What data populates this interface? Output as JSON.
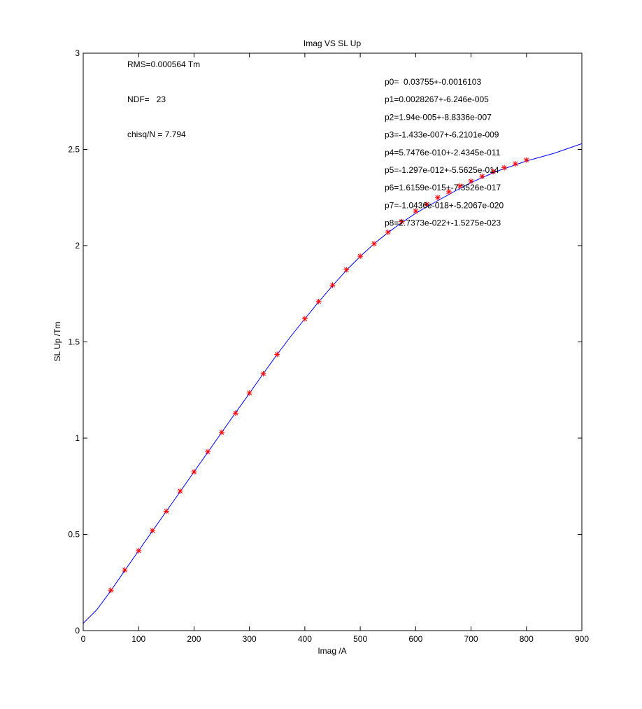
{
  "chart_data": {
    "type": "scatter",
    "title": "Imag VS SL Up",
    "xlabel": "Imag /A",
    "ylabel": "SL Up /Tm",
    "xlim": [
      0,
      900
    ],
    "ylim": [
      0,
      3
    ],
    "xticks": [
      0,
      100,
      200,
      300,
      400,
      500,
      600,
      700,
      800,
      900
    ],
    "yticks": [
      0,
      0.5,
      1,
      1.5,
      2,
      2.5,
      3
    ],
    "xtick_labels": [
      "0",
      "100",
      "200",
      "300",
      "400",
      "500",
      "600",
      "700",
      "800",
      "900"
    ],
    "ytick_labels": [
      "0",
      "0.5",
      "1",
      "1.5",
      "2",
      "2.5",
      "3"
    ],
    "grid": false,
    "series": [
      {
        "type": "scatter",
        "marker": "asterisk",
        "color": "#ff0000",
        "x": [
          50,
          75,
          100,
          125,
          150,
          175,
          200,
          225,
          250,
          275,
          300,
          325,
          350,
          400,
          425,
          450,
          475,
          500,
          525,
          550,
          575,
          600,
          620,
          640,
          660,
          680,
          700,
          720,
          740,
          760,
          780,
          800
        ],
        "y": [
          0.21,
          0.315,
          0.415,
          0.52,
          0.62,
          0.725,
          0.825,
          0.93,
          1.03,
          1.13,
          1.235,
          1.335,
          1.435,
          1.62,
          1.71,
          1.795,
          1.875,
          1.945,
          2.01,
          2.07,
          2.125,
          2.18,
          2.215,
          2.25,
          2.28,
          2.31,
          2.335,
          2.36,
          2.385,
          2.405,
          2.425,
          2.445
        ]
      },
      {
        "type": "line",
        "color": "#0000ff",
        "x": [
          0,
          25,
          50,
          75,
          100,
          125,
          150,
          175,
          200,
          225,
          250,
          275,
          300,
          325,
          350,
          375,
          400,
          425,
          450,
          475,
          500,
          525,
          550,
          575,
          600,
          625,
          650,
          675,
          700,
          725,
          750,
          775,
          800,
          825,
          850,
          875,
          900
        ],
        "y": [
          0.038,
          0.11,
          0.208,
          0.312,
          0.415,
          0.518,
          0.62,
          0.722,
          0.825,
          0.927,
          1.03,
          1.132,
          1.233,
          1.335,
          1.435,
          1.53,
          1.62,
          1.708,
          1.792,
          1.872,
          1.944,
          2.01,
          2.068,
          2.12,
          2.168,
          2.21,
          2.25,
          2.29,
          2.328,
          2.36,
          2.39,
          2.415,
          2.44,
          2.46,
          2.48,
          2.505,
          2.53
        ]
      }
    ],
    "annotations_left": [
      "RMS=0.000564 Tm",
      "NDF=   23",
      "chisq/N = 7.794"
    ],
    "annotations_right": [
      "p0=  0.03755+-0.0016103",
      "p1=0.0028267+-6.246e-005",
      "p2=1.94e-005+-8.8336e-007",
      "p3=-1.433e-007+-6.2101e-009",
      "p4=5.7476e-010+-2.4345e-011",
      "p5=-1.297e-012+-5.5625e-014",
      "p6=1.6159e-015+-7.3526e-017",
      "p7=-1.0436e-018+-5.2067e-020",
      "p8=2.7373e-022+-1.5275e-023"
    ]
  }
}
